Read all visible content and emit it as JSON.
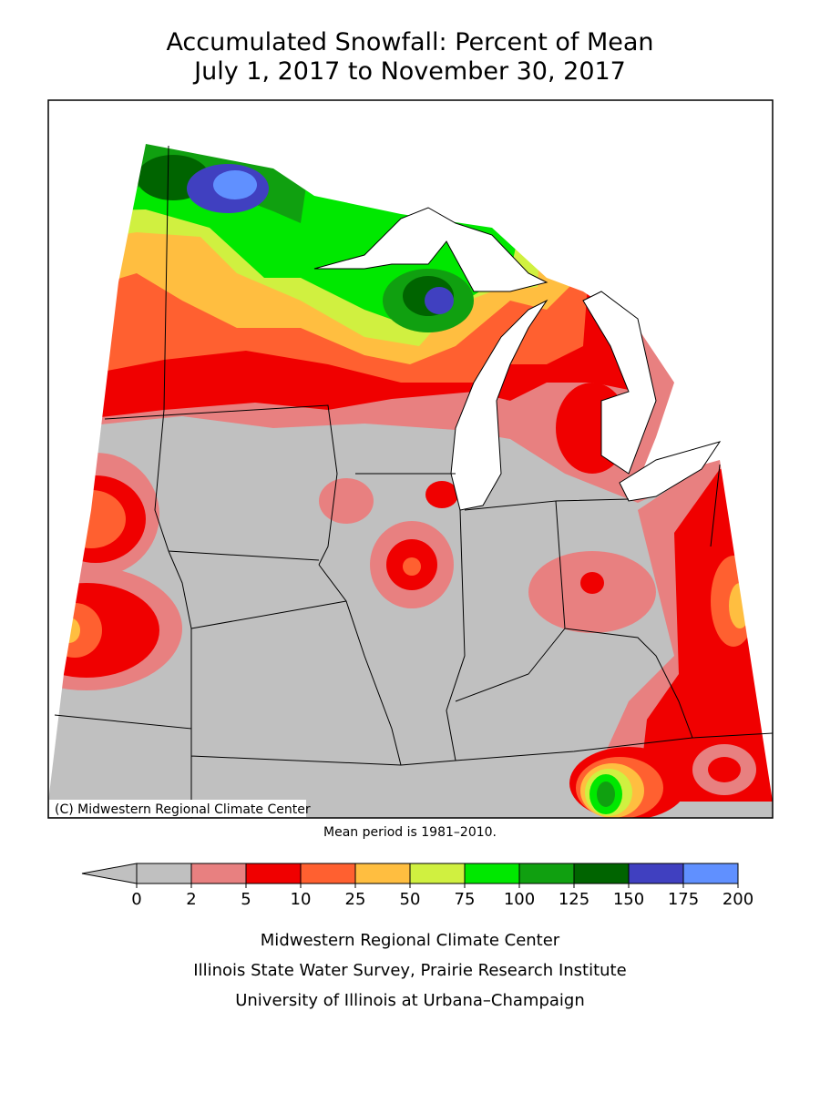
{
  "title": [
    "Accumulated Snowfall: Percent of Mean",
    "July 1, 2017 to November 30, 2017"
  ],
  "map": {
    "credit": "(C) Midwestern Regional Climate Center"
  },
  "note": "Mean period is 1981–2010.",
  "legend": {
    "ticks": [
      0,
      2,
      5,
      10,
      25,
      50,
      75,
      100,
      125,
      150,
      175,
      200
    ],
    "under_color": "#c0c0c0",
    "colors": [
      "#c0c0c0",
      "#e88080",
      "#f00000",
      "#ff6030",
      "#ffbe40",
      "#d0f040",
      "#00e800",
      "#10a010",
      "#006400",
      "#4040c0",
      "#6090ff"
    ]
  },
  "footer": [
    "Midwestern Regional Climate Center",
    "Illinois State Water Survey, Prairie Research Institute",
    "University of Illinois at Urbana–Champaign"
  ]
}
